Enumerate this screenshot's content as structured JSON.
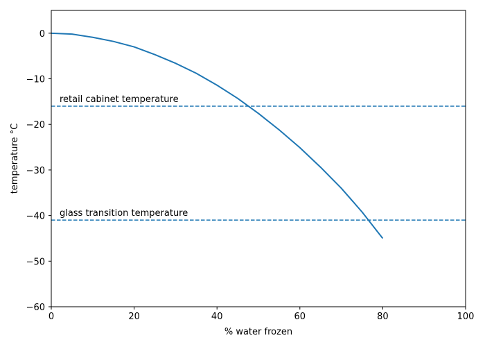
{
  "chart_data": {
    "type": "line",
    "xlabel": "% water frozen",
    "ylabel": "temperature °C",
    "xlim": [
      0,
      100
    ],
    "ylim": [
      -60,
      5
    ],
    "xticks": [
      0,
      20,
      40,
      60,
      80,
      100
    ],
    "yticks": [
      0,
      -10,
      -20,
      -30,
      -40,
      -50,
      -60
    ],
    "xtick_labels": [
      "0",
      "20",
      "40",
      "60",
      "80",
      "100"
    ],
    "ytick_labels": [
      "0",
      "−10",
      "−20",
      "−30",
      "−40",
      "−50",
      "−60"
    ],
    "grid": false,
    "series": [
      {
        "style": "solid",
        "color": "#1f77b4",
        "x": [
          0,
          5,
          10,
          15,
          20,
          25,
          30,
          35,
          40,
          45,
          50,
          55,
          60,
          65,
          70,
          75,
          80
        ],
        "y": [
          0,
          -0.2,
          -0.9,
          -1.8,
          -3.0,
          -4.7,
          -6.6,
          -8.8,
          -11.4,
          -14.3,
          -17.6,
          -21.2,
          -25.1,
          -29.4,
          -34.0,
          -39.2,
          -45.0
        ]
      }
    ],
    "reference_lines": [
      {
        "y": -16,
        "label": "retail cabinet temperature",
        "style": "dashed",
        "color": "#1f77b4"
      },
      {
        "y": -41,
        "label": "glass transition temperature",
        "style": "dashed",
        "color": "#1f77b4"
      }
    ]
  }
}
